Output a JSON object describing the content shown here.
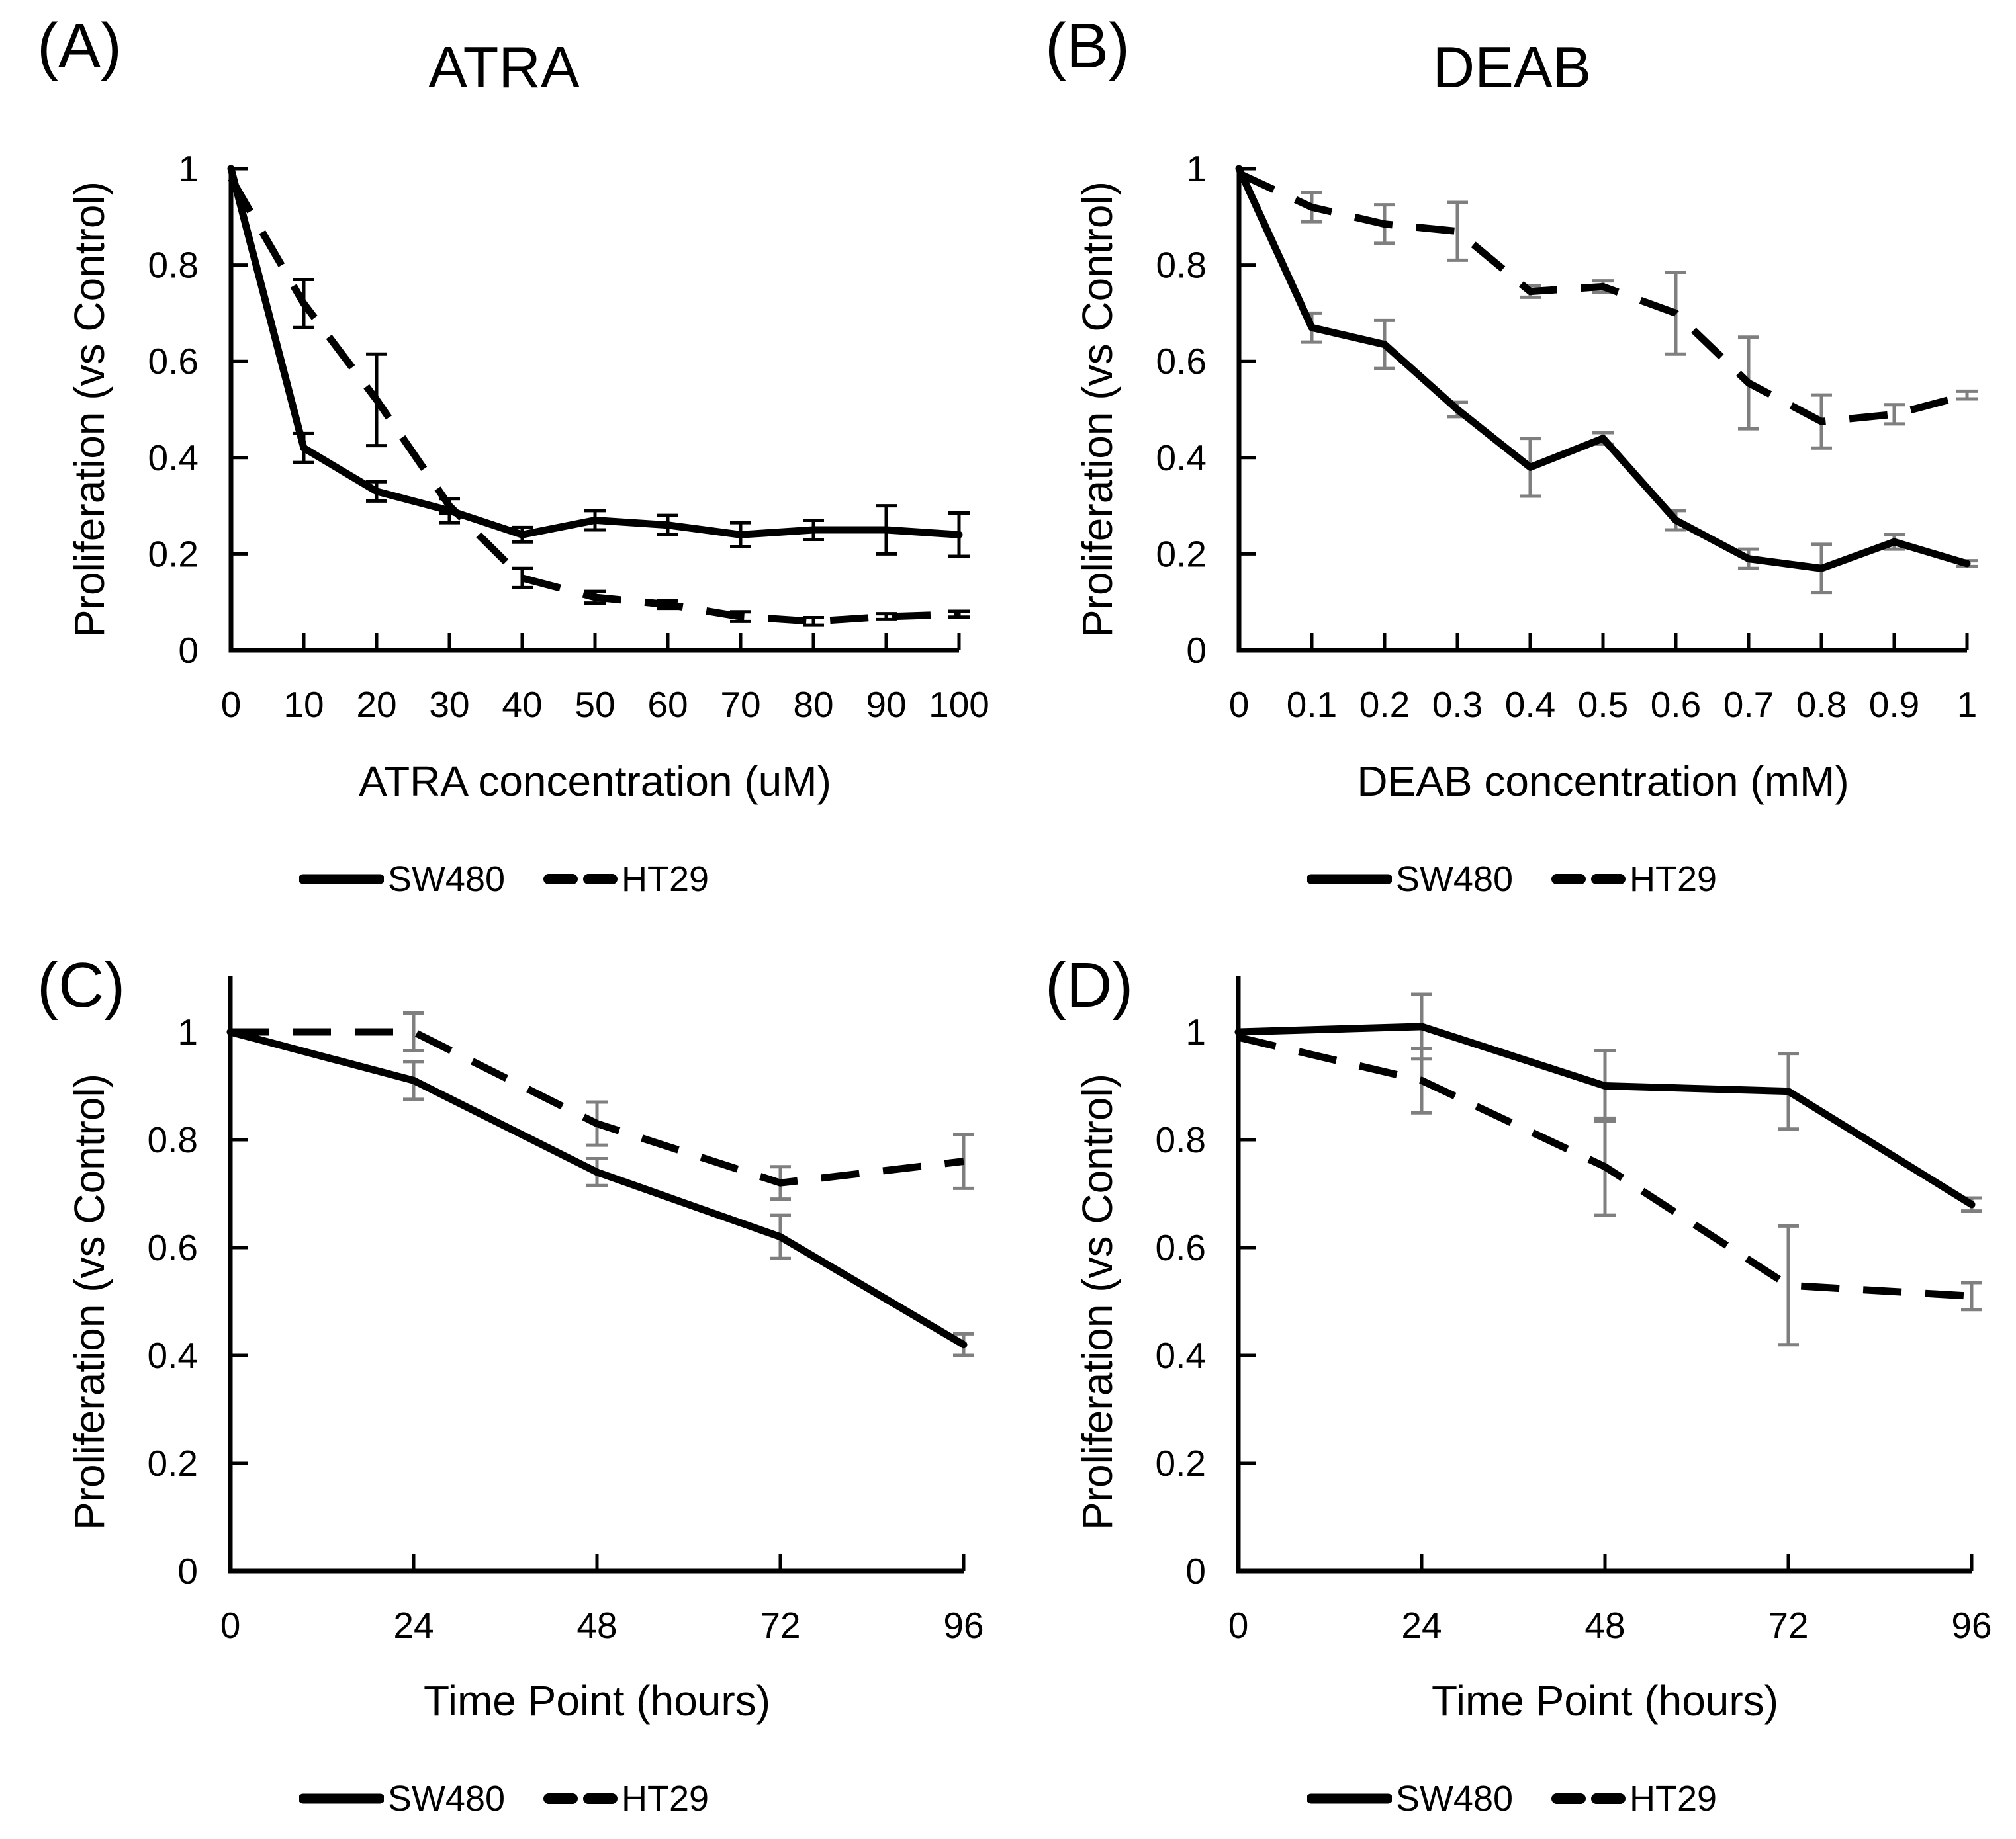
{
  "figure": {
    "background": "#ffffff",
    "line_color": "#000000",
    "gray_error_color": "#7f7f7f",
    "series_names": [
      "SW480",
      "HT29"
    ]
  },
  "chart_data": [
    {
      "panel": "(A)",
      "type": "line",
      "title": "ATRA",
      "xlabel": "ATRA concentration (uM)",
      "ylabel": "Proliferation (vs Control)",
      "x": [
        0,
        10,
        20,
        30,
        40,
        50,
        60,
        70,
        80,
        90,
        100
      ],
      "xticks": [
        "0",
        "10",
        "20",
        "30",
        "40",
        "50",
        "60",
        "70",
        "80",
        "90",
        "100"
      ],
      "yticks": [
        "0",
        "0.2",
        "0.4",
        "0.6",
        "0.8",
        "1"
      ],
      "ylim": [
        0,
        1
      ],
      "grid": false,
      "legend_position": "bottom",
      "error_bar_color": "#000000",
      "series": [
        {
          "name": "SW480",
          "line_style": "solid",
          "values": [
            1.0,
            0.42,
            0.33,
            0.29,
            0.24,
            0.27,
            0.26,
            0.24,
            0.25,
            0.25,
            0.24
          ],
          "errors": [
            0,
            0.03,
            0.02,
            0.025,
            0.015,
            0.02,
            0.02,
            0.025,
            0.02,
            0.05,
            0.045
          ]
        },
        {
          "name": "HT29",
          "line_style": "dashed",
          "values": [
            0.98,
            0.72,
            0.52,
            0.3,
            0.15,
            0.11,
            0.095,
            0.07,
            0.06,
            0.07,
            0.075
          ],
          "errors": [
            0,
            0.05,
            0.095,
            0.015,
            0.02,
            0.012,
            0.008,
            0.01,
            0.008,
            0.006,
            0.006
          ]
        }
      ]
    },
    {
      "panel": "(B)",
      "type": "line",
      "title": "DEAB",
      "xlabel": "DEAB concentration (mM)",
      "ylabel": "Proliferation (vs Control)",
      "x": [
        0,
        0.1,
        0.2,
        0.3,
        0.4,
        0.5,
        0.6,
        0.7,
        0.8,
        0.9,
        1
      ],
      "xticks": [
        "0",
        "0.1",
        "0.2",
        "0.3",
        "0.4",
        "0.5",
        "0.6",
        "0.7",
        "0.8",
        "0.9",
        "1"
      ],
      "yticks": [
        "0",
        "0.2",
        "0.4",
        "0.6",
        "0.8",
        "1"
      ],
      "ylim": [
        0,
        1
      ],
      "grid": false,
      "legend_position": "bottom",
      "error_bar_color": "#7f7f7f",
      "series": [
        {
          "name": "SW480",
          "line_style": "solid",
          "values": [
            1.0,
            0.67,
            0.635,
            0.5,
            0.38,
            0.44,
            0.27,
            0.19,
            0.17,
            0.225,
            0.18
          ],
          "errors": [
            0,
            0.03,
            0.05,
            0.015,
            0.06,
            0.012,
            0.02,
            0.02,
            0.05,
            0.015,
            0.006
          ]
        },
        {
          "name": "HT29",
          "line_style": "dashed",
          "values": [
            0.99,
            0.92,
            0.885,
            0.87,
            0.745,
            0.755,
            0.7,
            0.555,
            0.475,
            0.49,
            0.53
          ],
          "errors": [
            0,
            0.03,
            0.04,
            0.06,
            0.012,
            0.012,
            0.085,
            0.095,
            0.055,
            0.02,
            0.008
          ]
        }
      ]
    },
    {
      "panel": "(C)",
      "type": "line",
      "title": "",
      "xlabel": "Time Point (hours)",
      "ylabel": "Proliferation (vs Control)",
      "x": [
        0,
        24,
        48,
        72,
        96
      ],
      "xticks": [
        "0",
        "24",
        "48",
        "72",
        "96"
      ],
      "yticks": [
        "0",
        "0.2",
        "0.4",
        "0.6",
        "0.8",
        "1"
      ],
      "ylim": [
        0,
        1
      ],
      "grid": false,
      "legend_position": "bottom",
      "error_bar_color": "#7f7f7f",
      "series": [
        {
          "name": "SW480",
          "line_style": "solid",
          "values": [
            1.0,
            0.91,
            0.74,
            0.62,
            0.42
          ],
          "errors": [
            0,
            0.035,
            0.025,
            0.04,
            0.02
          ]
        },
        {
          "name": "HT29",
          "line_style": "dashed",
          "values": [
            1.0,
            1.0,
            0.83,
            0.72,
            0.76
          ],
          "errors": [
            0,
            0.035,
            0.04,
            0.03,
            0.05
          ]
        }
      ]
    },
    {
      "panel": "(D)",
      "type": "line",
      "title": "",
      "xlabel": "Time Point (hours)",
      "ylabel": "Proliferation (vs Control)",
      "x": [
        0,
        24,
        48,
        72,
        96
      ],
      "xticks": [
        "0",
        "24",
        "48",
        "72",
        "96"
      ],
      "yticks": [
        "0",
        "0.2",
        "0.4",
        "0.6",
        "0.8",
        "1"
      ],
      "ylim": [
        0,
        1
      ],
      "grid": false,
      "legend_position": "bottom",
      "error_bar_color": "#7f7f7f",
      "series": [
        {
          "name": "SW480",
          "line_style": "solid",
          "values": [
            1.0,
            1.01,
            0.9,
            0.89,
            0.68
          ],
          "errors": [
            0,
            0.06,
            0.065,
            0.07,
            0.012
          ]
        },
        {
          "name": "HT29",
          "line_style": "dashed",
          "values": [
            0.99,
            0.91,
            0.75,
            0.53,
            0.51
          ],
          "errors": [
            0,
            0.06,
            0.09,
            0.11,
            0.025
          ]
        }
      ]
    }
  ]
}
